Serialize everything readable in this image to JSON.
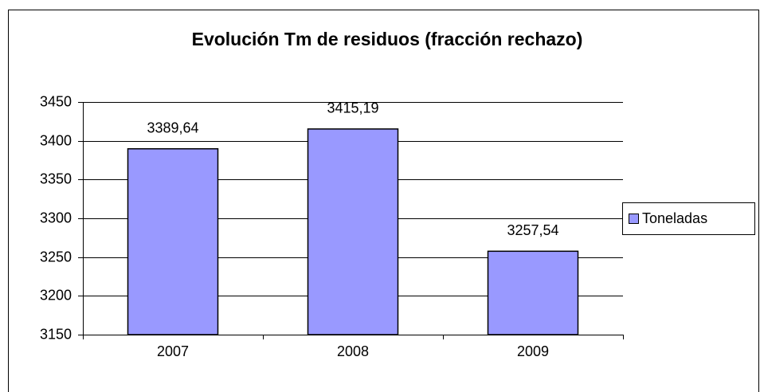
{
  "chart_data": {
    "type": "bar",
    "title": "Evolución Tm de residuos (fracción rechazo)",
    "categories": [
      "2007",
      "2008",
      "2009"
    ],
    "series": [
      {
        "name": "Toneladas",
        "color": "#9999ff",
        "values": [
          3389.64,
          3415.19,
          3257.54
        ],
        "value_labels": [
          "3389,64",
          "3415,19",
          "3257,54"
        ]
      }
    ],
    "ylim": [
      3150,
      3450
    ],
    "yticks": [
      3150,
      3200,
      3250,
      3300,
      3350,
      3400,
      3450
    ],
    "grid": true,
    "legend": "right"
  }
}
